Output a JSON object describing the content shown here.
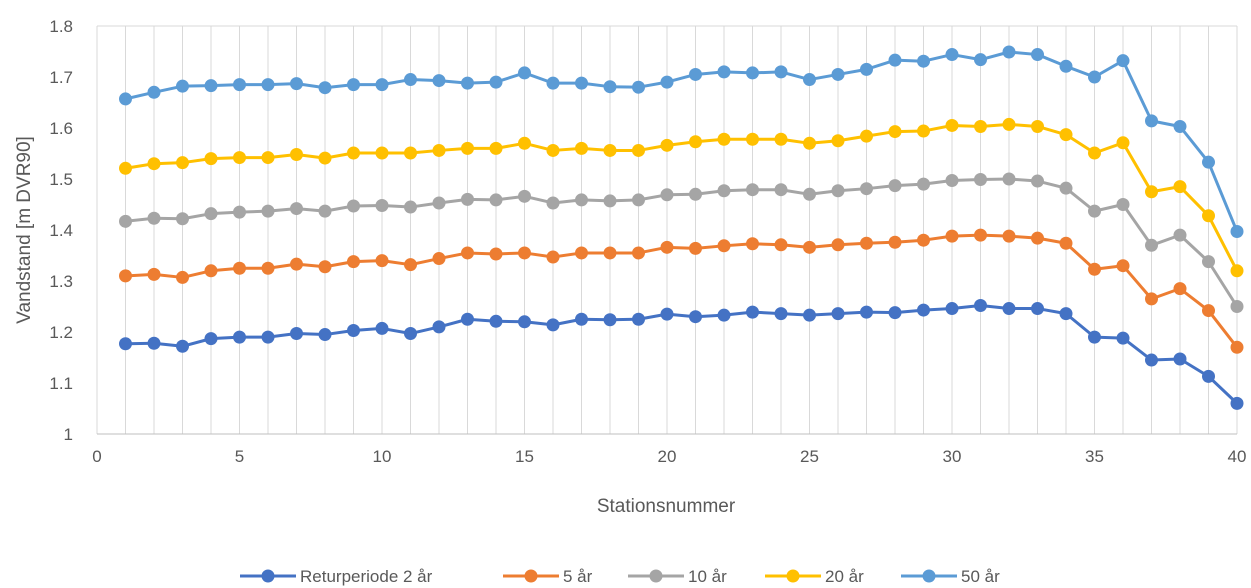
{
  "chart_data": {
    "type": "line",
    "title": "",
    "xlabel": "Stationsnummer",
    "ylabel": "Vandstand [m DVR90]",
    "xlim": [
      0,
      40
    ],
    "ylim": [
      1.0,
      1.8
    ],
    "xticks": [
      0,
      5,
      10,
      15,
      20,
      25,
      30,
      35,
      40
    ],
    "yticks": [
      "1",
      "1.1",
      "1.2",
      "1.3",
      "1.4",
      "1.5",
      "1.6",
      "1.7",
      "1.8"
    ],
    "grid": "vertical-per-station",
    "legend_position": "bottom",
    "x": [
      1,
      2,
      3,
      4,
      5,
      6,
      7,
      8,
      9,
      10,
      11,
      12,
      13,
      14,
      15,
      16,
      17,
      18,
      19,
      20,
      21,
      22,
      23,
      24,
      25,
      26,
      27,
      28,
      29,
      30,
      31,
      32,
      33,
      34,
      35,
      36,
      37,
      38,
      39,
      40
    ],
    "series": [
      {
        "name": "Returperiode 2 år",
        "color": "#4472C4",
        "values": [
          1.177,
          1.178,
          1.172,
          1.187,
          1.19,
          1.19,
          1.197,
          1.195,
          1.203,
          1.207,
          1.197,
          1.21,
          1.225,
          1.221,
          1.22,
          1.214,
          1.225,
          1.224,
          1.225,
          1.235,
          1.23,
          1.233,
          1.239,
          1.236,
          1.233,
          1.236,
          1.239,
          1.238,
          1.243,
          1.246,
          1.252,
          1.246,
          1.246,
          1.236,
          1.19,
          1.188,
          1.145,
          1.147,
          1.113,
          1.06
        ]
      },
      {
        "name": "5 år",
        "color": "#ED7D31",
        "values": [
          1.31,
          1.313,
          1.307,
          1.32,
          1.325,
          1.325,
          1.333,
          1.328,
          1.338,
          1.34,
          1.332,
          1.344,
          1.355,
          1.353,
          1.355,
          1.347,
          1.355,
          1.355,
          1.355,
          1.366,
          1.364,
          1.369,
          1.373,
          1.371,
          1.366,
          1.371,
          1.374,
          1.376,
          1.38,
          1.388,
          1.39,
          1.388,
          1.384,
          1.374,
          1.323,
          1.33,
          1.265,
          1.285,
          1.242,
          1.17
        ]
      },
      {
        "name": "10 år",
        "color": "#A5A5A5",
        "values": [
          1.417,
          1.423,
          1.422,
          1.432,
          1.435,
          1.437,
          1.442,
          1.437,
          1.447,
          1.448,
          1.445,
          1.453,
          1.46,
          1.459,
          1.466,
          1.453,
          1.459,
          1.457,
          1.459,
          1.469,
          1.47,
          1.477,
          1.479,
          1.479,
          1.47,
          1.477,
          1.481,
          1.487,
          1.49,
          1.497,
          1.499,
          1.5,
          1.496,
          1.482,
          1.437,
          1.45,
          1.37,
          1.39,
          1.338,
          1.25
        ]
      },
      {
        "name": "20 år",
        "color": "#FFC000",
        "values": [
          1.521,
          1.53,
          1.532,
          1.54,
          1.542,
          1.542,
          1.548,
          1.541,
          1.551,
          1.551,
          1.551,
          1.556,
          1.56,
          1.56,
          1.57,
          1.556,
          1.56,
          1.556,
          1.556,
          1.566,
          1.573,
          1.578,
          1.578,
          1.578,
          1.57,
          1.575,
          1.584,
          1.593,
          1.594,
          1.605,
          1.603,
          1.607,
          1.603,
          1.587,
          1.551,
          1.571,
          1.475,
          1.485,
          1.428,
          1.32
        ]
      },
      {
        "name": "50 år",
        "color": "#5B9BD5",
        "values": [
          1.657,
          1.67,
          1.682,
          1.683,
          1.685,
          1.685,
          1.687,
          1.679,
          1.685,
          1.685,
          1.695,
          1.693,
          1.688,
          1.69,
          1.708,
          1.688,
          1.688,
          1.681,
          1.68,
          1.69,
          1.705,
          1.71,
          1.708,
          1.71,
          1.695,
          1.705,
          1.715,
          1.733,
          1.731,
          1.744,
          1.734,
          1.749,
          1.744,
          1.721,
          1.7,
          1.732,
          1.614,
          1.603,
          1.533,
          1.397
        ]
      }
    ]
  }
}
